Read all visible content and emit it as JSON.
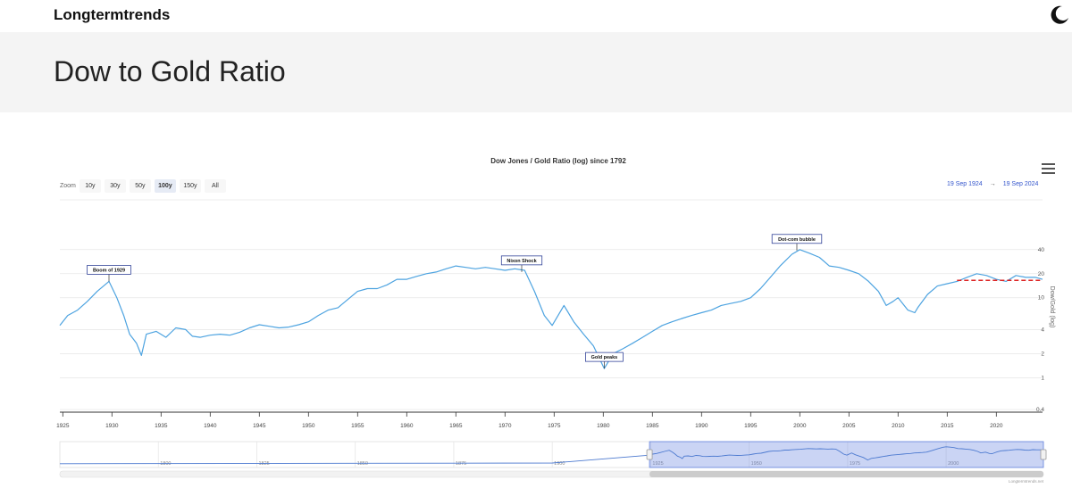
{
  "header": {
    "brand": "Longtermtrends",
    "theme_icon": "moon-icon"
  },
  "banner": {
    "title": "Dow to Gold Ratio"
  },
  "zoom": {
    "label": "Zoom",
    "buttons": [
      {
        "label": "10y",
        "active": false
      },
      {
        "label": "30y",
        "active": false
      },
      {
        "label": "50y",
        "active": false
      },
      {
        "label": "100y",
        "active": true
      },
      {
        "label": "150y",
        "active": false
      },
      {
        "label": "All",
        "active": false
      }
    ]
  },
  "range": {
    "from": "19 Sep 1924",
    "arrow": "→",
    "to": "19 Sep 2024"
  },
  "chart_data": {
    "type": "line",
    "title": "Dow Jones / Gold Ratio (log) since 1792",
    "ylabel": "Dow/Gold (log)",
    "y_scale": "log",
    "ylim": [
      0.4,
      60
    ],
    "xlim": [
      1924.7,
      2024.7
    ],
    "x_ticks": [
      1925,
      1930,
      1935,
      1940,
      1945,
      1950,
      1955,
      1960,
      1965,
      1970,
      1975,
      1980,
      1985,
      1990,
      1995,
      2000,
      2005,
      2010,
      2015,
      2020
    ],
    "y_ticks": [
      0.4,
      1,
      2,
      4,
      10,
      20,
      40
    ],
    "series": [
      {
        "color": "#4da3e0",
        "x": [
          1924.7,
          1925.5,
          1926.5,
          1927.5,
          1928.5,
          1929.7,
          1930.5,
          1931.2,
          1931.8,
          1932.5,
          1933,
          1933.5,
          1934.5,
          1935.5,
          1936.5,
          1937.5,
          1938.2,
          1939,
          1940,
          1941,
          1942,
          1943,
          1944,
          1945,
          1946,
          1947,
          1948,
          1949,
          1950,
          1951,
          1952,
          1953,
          1954,
          1955,
          1956,
          1957,
          1958,
          1959,
          1960,
          1961,
          1962,
          1963,
          1964,
          1965,
          1966,
          1967,
          1968,
          1969,
          1970,
          1971,
          1972,
          1973,
          1974,
          1974.8,
          1976,
          1977,
          1978,
          1979,
          1980.1,
          1980.4,
          1981,
          1982,
          1983,
          1984,
          1985,
          1986,
          1987,
          1988,
          1989,
          1990,
          1991,
          1992,
          1993,
          1994,
          1995,
          1996,
          1997,
          1998,
          1999.2,
          2000,
          2001,
          2002,
          2003,
          2004,
          2005,
          2006,
          2007,
          2008,
          2008.8,
          2009.5,
          2010,
          2011,
          2011.7,
          2012,
          2013,
          2014,
          2015,
          2016,
          2017,
          2018,
          2019,
          2020,
          2021,
          2022,
          2023,
          2024,
          2024.7
        ],
        "y": [
          4.5,
          6,
          7,
          9,
          12,
          16,
          10,
          6,
          3.5,
          2.7,
          1.9,
          3.5,
          3.8,
          3.2,
          4.2,
          4,
          3.3,
          3.2,
          3.4,
          3.5,
          3.4,
          3.7,
          4.2,
          4.6,
          4.4,
          4.2,
          4.3,
          4.6,
          5,
          6,
          7,
          7.5,
          9.5,
          12,
          13,
          13,
          14.5,
          17,
          17,
          18.5,
          20,
          21,
          23,
          25,
          24,
          23,
          24,
          23,
          22,
          23,
          22,
          12,
          6,
          4.5,
          8,
          5,
          3.5,
          2.5,
          1.3,
          1.5,
          2,
          2.3,
          2.7,
          3.2,
          3.8,
          4.5,
          5,
          5.5,
          6,
          6.5,
          7,
          8,
          8.5,
          9,
          10,
          13,
          18,
          25,
          35,
          40,
          36,
          32,
          25,
          24,
          22,
          20,
          16,
          12,
          8,
          9,
          10,
          7,
          6.5,
          7.5,
          11,
          14,
          15,
          16,
          18,
          20,
          19,
          17,
          16,
          19,
          18,
          18,
          17
        ]
      }
    ],
    "reference_line": {
      "value": 16.5,
      "x_start": 2016,
      "x_end": 2024.7,
      "color": "#dd2222",
      "style": "dashed"
    },
    "annotations": [
      {
        "label": "Boom of 1929",
        "x": 1929.7,
        "y": 16
      },
      {
        "label": "Nixon Shock",
        "x": 1971.7,
        "y": 21
      },
      {
        "label": "Gold peaks",
        "x": 1980.1,
        "y": 1.3
      },
      {
        "label": "Dot-com bubble",
        "x": 1999.7,
        "y": 39
      }
    ],
    "navigator": {
      "xlim": [
        1775,
        2024.7
      ],
      "ticks": [
        1800,
        1825,
        1850,
        1875,
        1900,
        1925,
        1950,
        1975,
        2000
      ],
      "selected": [
        1924.7,
        2024.7
      ]
    },
    "credit": "Longtermtrends.net"
  }
}
